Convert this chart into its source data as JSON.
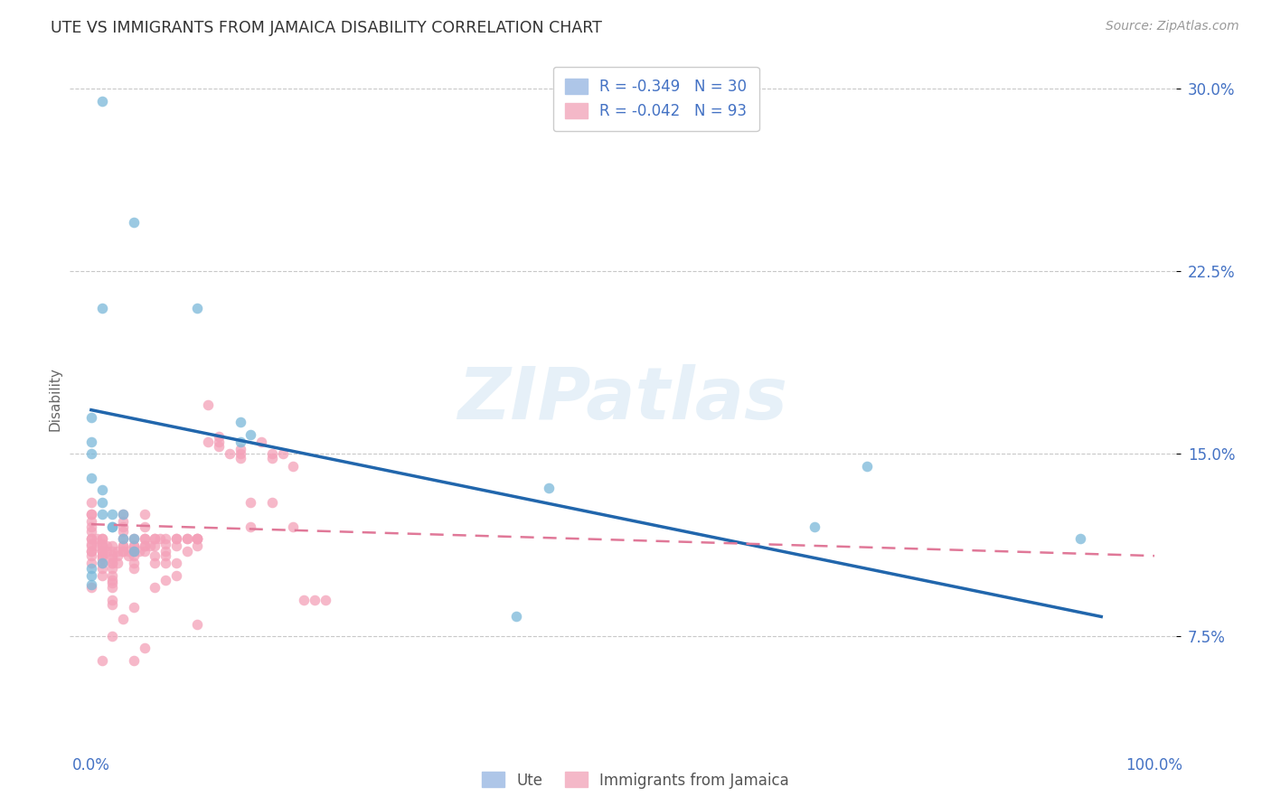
{
  "title": "UTE VS IMMIGRANTS FROM JAMAICA DISABILITY CORRELATION CHART",
  "source": "Source: ZipAtlas.com",
  "ylabel": "Disability",
  "watermark": "ZIPatlas",
  "xlim": [
    -0.02,
    1.02
  ],
  "ylim": [
    0.03,
    0.315
  ],
  "xticks": [
    0.0,
    0.25,
    0.5,
    0.75,
    1.0
  ],
  "xtick_labels": [
    "0.0%",
    "",
    "",
    "",
    "100.0%"
  ],
  "yticks": [
    0.075,
    0.15,
    0.225,
    0.3
  ],
  "ytick_labels": [
    "7.5%",
    "15.0%",
    "22.5%",
    "30.0%"
  ],
  "legend_label1": "Ute",
  "legend_label2": "Immigrants from Jamaica",
  "series1_color": "#7ab8d9",
  "series2_color": "#f4a0b8",
  "trendline1_color": "#2166ac",
  "trendline2_color": "#e07898",
  "grid_color": "#c8c8c8",
  "background_color": "#ffffff",
  "ute_x": [
    0.01,
    0.04,
    0.1,
    0.0,
    0.0,
    0.0,
    0.0,
    0.01,
    0.01,
    0.01,
    0.02,
    0.02,
    0.03,
    0.03,
    0.04,
    0.04,
    0.14,
    0.15,
    0.14,
    0.0,
    0.0,
    0.0,
    0.01,
    0.02,
    0.43,
    0.68,
    0.73,
    0.93,
    0.4,
    0.01
  ],
  "ute_y": [
    0.295,
    0.245,
    0.21,
    0.165,
    0.155,
    0.15,
    0.14,
    0.135,
    0.13,
    0.125,
    0.12,
    0.125,
    0.125,
    0.115,
    0.115,
    0.11,
    0.163,
    0.158,
    0.155,
    0.103,
    0.1,
    0.096,
    0.105,
    0.12,
    0.136,
    0.12,
    0.145,
    0.115,
    0.083,
    0.21
  ],
  "jamaica_x": [
    0.0,
    0.0,
    0.0,
    0.0,
    0.0,
    0.0,
    0.0,
    0.0,
    0.0,
    0.01,
    0.01,
    0.01,
    0.01,
    0.01,
    0.01,
    0.01,
    0.01,
    0.02,
    0.02,
    0.02,
    0.02,
    0.02,
    0.02,
    0.02,
    0.02,
    0.02,
    0.03,
    0.03,
    0.03,
    0.03,
    0.03,
    0.03,
    0.03,
    0.04,
    0.04,
    0.04,
    0.04,
    0.04,
    0.04,
    0.05,
    0.05,
    0.05,
    0.05,
    0.05,
    0.06,
    0.06,
    0.06,
    0.06,
    0.07,
    0.07,
    0.07,
    0.07,
    0.08,
    0.08,
    0.08,
    0.09,
    0.09,
    0.1,
    0.1,
    0.1,
    0.1,
    0.11,
    0.11,
    0.12,
    0.12,
    0.12,
    0.13,
    0.14,
    0.14,
    0.14,
    0.15,
    0.16,
    0.17,
    0.17,
    0.18,
    0.19,
    0.2,
    0.21,
    0.22,
    0.04,
    0.05,
    0.1,
    0.15,
    0.17,
    0.19,
    0.0,
    0.01,
    0.02,
    0.03,
    0.04,
    0.06,
    0.07,
    0.08
  ],
  "jamaica_y": [
    0.13,
    0.125,
    0.125,
    0.122,
    0.12,
    0.118,
    0.115,
    0.113,
    0.11,
    0.115,
    0.113,
    0.11,
    0.108,
    0.107,
    0.105,
    0.103,
    0.1,
    0.107,
    0.105,
    0.103,
    0.1,
    0.098,
    0.097,
    0.095,
    0.09,
    0.088,
    0.125,
    0.122,
    0.12,
    0.118,
    0.115,
    0.112,
    0.11,
    0.115,
    0.112,
    0.11,
    0.108,
    0.105,
    0.103,
    0.125,
    0.12,
    0.115,
    0.112,
    0.11,
    0.115,
    0.112,
    0.108,
    0.105,
    0.113,
    0.11,
    0.108,
    0.105,
    0.115,
    0.112,
    0.105,
    0.115,
    0.11,
    0.115,
    0.112,
    0.115,
    0.115,
    0.17,
    0.155,
    0.157,
    0.155,
    0.153,
    0.15,
    0.152,
    0.15,
    0.148,
    0.13,
    0.155,
    0.15,
    0.148,
    0.15,
    0.145,
    0.09,
    0.09,
    0.09,
    0.065,
    0.07,
    0.08,
    0.12,
    0.13,
    0.12,
    0.095,
    0.065,
    0.075,
    0.082,
    0.087,
    0.095,
    0.098,
    0.1
  ],
  "jam_dense_x": [
    0.0,
    0.0,
    0.0,
    0.0,
    0.0,
    0.005,
    0.005,
    0.01,
    0.01,
    0.01,
    0.01,
    0.015,
    0.015,
    0.02,
    0.02,
    0.02,
    0.02,
    0.025,
    0.025,
    0.025,
    0.03,
    0.03,
    0.035,
    0.035,
    0.04,
    0.04,
    0.045,
    0.05,
    0.05,
    0.055,
    0.06,
    0.065,
    0.07,
    0.08,
    0.09
  ],
  "jam_dense_y": [
    0.115,
    0.112,
    0.11,
    0.108,
    0.105,
    0.115,
    0.112,
    0.115,
    0.112,
    0.11,
    0.108,
    0.112,
    0.11,
    0.112,
    0.11,
    0.108,
    0.105,
    0.11,
    0.108,
    0.105,
    0.112,
    0.11,
    0.11,
    0.108,
    0.112,
    0.11,
    0.11,
    0.115,
    0.112,
    0.112,
    0.115,
    0.115,
    0.115,
    0.115,
    0.115
  ]
}
